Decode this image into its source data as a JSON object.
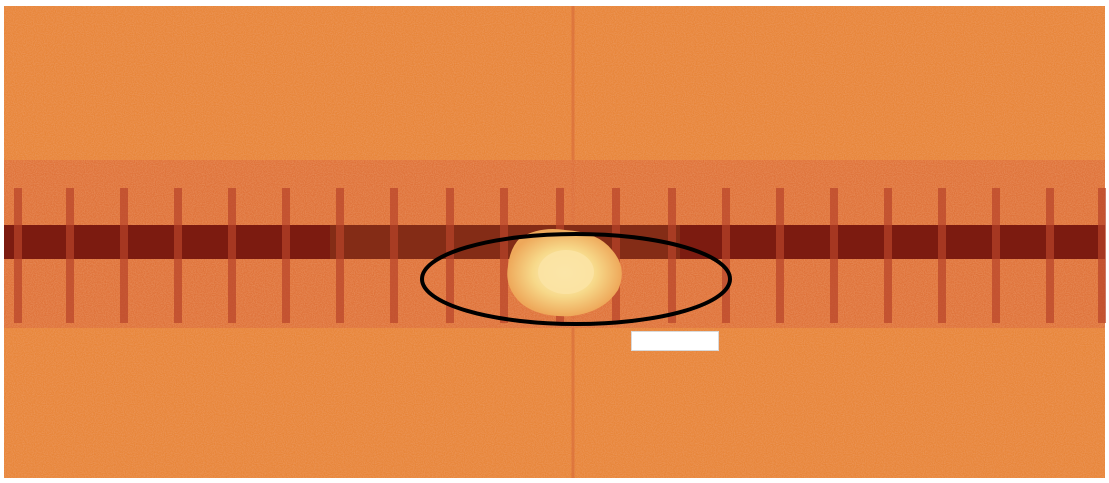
{
  "image": {
    "subject": "micrograph",
    "colors": {
      "background_a": "#e9873a",
      "background_b": "#d9673a",
      "band": "#dc6d3c",
      "dark_strip": "#7a1a10",
      "bright_spot": "#fbe3a4",
      "ellipse_stroke": "#000000"
    }
  },
  "caption_tag": {
    "text": ""
  }
}
